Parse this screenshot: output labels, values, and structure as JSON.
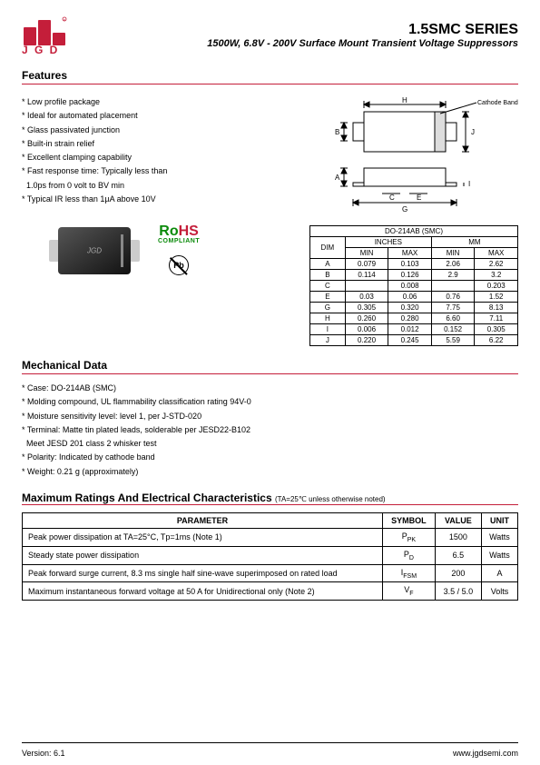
{
  "header": {
    "logo_text": "J G D",
    "series": "1.5SMC SERIES",
    "subtitle": "1500W, 6.8V - 200V Surface Mount Transient Voltage Suppressors"
  },
  "sections": {
    "features_title": "Features",
    "mechanical_title": "Mechanical Data",
    "ratings_title": "Maximum Ratings And Electrical Characteristics",
    "ratings_note": "(TA=25℃ unless otherwise noted)"
  },
  "features": [
    "Low profile package",
    "Ideal for automated placement",
    "Glass passivated junction",
    "Built-in strain relief",
    "Excellent clamping capability",
    "Fast response time: Typically less than",
    "1.0ps from 0 volt to BV min",
    "Typical IR less than 1µA above 10V"
  ],
  "diagram": {
    "cathode_label": "Cathode Band",
    "dims": {
      "H": "H",
      "B": "B",
      "J": "J",
      "A": "A",
      "C": "C",
      "E": "E",
      "G": "G",
      "I": "I"
    }
  },
  "chip_label": "JGD",
  "rohs": {
    "text1": "Ro",
    "text2": "HS",
    "sub": "COMPLIANT"
  },
  "pb": "Pb",
  "dim_table": {
    "title": "DO-214AB (SMC)",
    "col_dim": "DIM",
    "col_inches": "INCHES",
    "col_mm": "MM",
    "col_min": "MIN",
    "col_max": "MAX",
    "rows": [
      {
        "d": "A",
        "imin": "0.079",
        "imax": "0.103",
        "mmin": "2.06",
        "mmax": "2.62"
      },
      {
        "d": "B",
        "imin": "0.114",
        "imax": "0.126",
        "mmin": "2.9",
        "mmax": "3.2"
      },
      {
        "d": "C",
        "imin": "",
        "imax": "0.008",
        "mmin": "",
        "mmax": "0.203"
      },
      {
        "d": "E",
        "imin": "0.03",
        "imax": "0.06",
        "mmin": "0.76",
        "mmax": "1.52"
      },
      {
        "d": "G",
        "imin": "0.305",
        "imax": "0.320",
        "mmin": "7.75",
        "mmax": "8.13"
      },
      {
        "d": "H",
        "imin": "0.260",
        "imax": "0.280",
        "mmin": "6.60",
        "mmax": "7.11"
      },
      {
        "d": "I",
        "imin": "0.006",
        "imax": "0.012",
        "mmin": "0.152",
        "mmax": "0.305"
      },
      {
        "d": "J",
        "imin": "0.220",
        "imax": "0.245",
        "mmin": "5.59",
        "mmax": "6.22"
      }
    ]
  },
  "mechanical": [
    "Case: DO-214AB (SMC)",
    "Molding compound, UL flammability classification rating 94V-0",
    "Moisture sensitivity level: level 1, per J-STD-020",
    "Terminal: Matte tin plated leads, solderable per JESD22-B102",
    "Meet JESD 201 class 2 whisker test",
    "Polarity: Indicated by cathode band",
    "Weight: 0.21 g (approximately)"
  ],
  "param_table": {
    "cols": [
      "PARAMETER",
      "SYMBOL",
      "VALUE",
      "UNIT"
    ],
    "rows": [
      {
        "p": "Peak power dissipation at TA=25°C, Tp=1ms (Note 1)",
        "s": "P",
        "ss": "PK",
        "v": "1500",
        "u": "Watts"
      },
      {
        "p": "Steady state power dissipation",
        "s": "P",
        "ss": "D",
        "v": "6.5",
        "u": "Watts"
      },
      {
        "p": "Peak forward surge current, 8.3 ms single half sine-wave superimposed on rated load",
        "s": "I",
        "ss": "FSM",
        "v": "200",
        "u": "A"
      },
      {
        "p": "Maximum instantaneous forward voltage at 50 A for Unidirectional only (Note 2)",
        "s": "V",
        "ss": "F",
        "v": "3.5 / 5.0",
        "u": "Volts"
      }
    ]
  },
  "footer": {
    "version_label": "Version:",
    "version": "6.1",
    "url": "www.jgdsemi.com"
  }
}
